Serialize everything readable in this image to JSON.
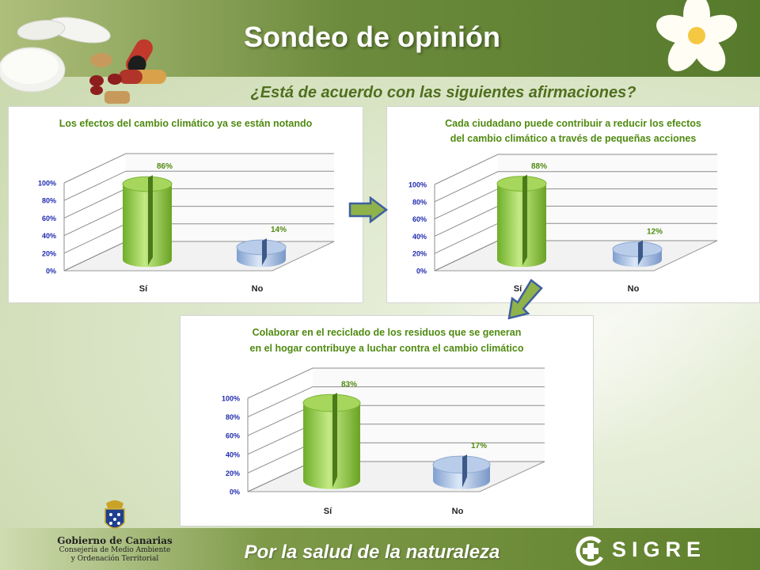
{
  "header": {
    "title": "Sondeo de opinión"
  },
  "subtitle": "¿Está de acuerdo con las siguientes afirmaciones?",
  "footer": {
    "slogan": "Por  la salud de la naturaleza",
    "gobierno": {
      "name": "Gobierno de Canarias",
      "dept_line1": "Consejería de Medio Ambiente",
      "dept_line2": "y Ordenación Territorial"
    },
    "sigre": "SIGRE"
  },
  "colors": {
    "green_bar": "#8dc63f",
    "blue_bar": "#9bb7dc",
    "title_green": "#4f8a10",
    "tick_blue": "#1f2bb0",
    "arrow_fill": "#8fb34a"
  },
  "chart_data": [
    {
      "type": "bar",
      "title": [
        "Los efectos del cambio climático ya se están notando"
      ],
      "categories": [
        "Sí",
        "No"
      ],
      "values": [
        86,
        14
      ],
      "data_labels": [
        "86%",
        "14%"
      ],
      "yticks": [
        "0%",
        "20%",
        "40%",
        "60%",
        "80%",
        "100%"
      ],
      "ylim": [
        0,
        100
      ]
    },
    {
      "type": "bar",
      "title": [
        "Cada ciudadano puede contribuir a reducir los efectos",
        "del cambio climático a través de pequeñas acciones"
      ],
      "categories": [
        "Sí",
        "No"
      ],
      "values": [
        88,
        12
      ],
      "data_labels": [
        "88%",
        "12%"
      ],
      "yticks": [
        "0%",
        "20%",
        "40%",
        "60%",
        "80%",
        "100%"
      ],
      "ylim": [
        0,
        100
      ]
    },
    {
      "type": "bar",
      "title": [
        "Colaborar en el reciclado de los residuos que se generan",
        "en el hogar contribuye a luchar contra el cambio climático"
      ],
      "categories": [
        "Sí",
        "No"
      ],
      "values": [
        83,
        17
      ],
      "data_labels": [
        "83%",
        "17%"
      ],
      "yticks": [
        "0%",
        "20%",
        "40%",
        "60%",
        "80%",
        "100%"
      ],
      "ylim": [
        0,
        100
      ]
    }
  ]
}
